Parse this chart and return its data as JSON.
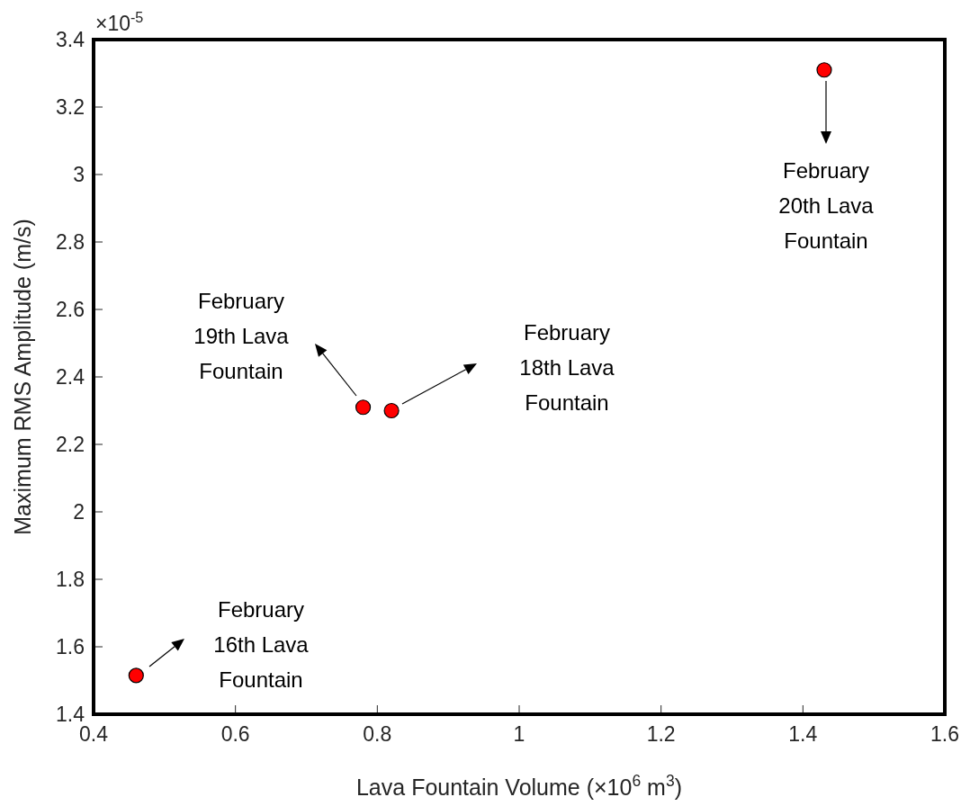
{
  "chart_data": {
    "type": "scatter",
    "xlabel": "Lava Fountain Volume (×10$^{6}$ m$^{3}$)",
    "ylabel": "Maximum RMS Amplitude (m/s)",
    "x": [
      0.46,
      0.78,
      0.82,
      1.43
    ],
    "series": [
      {
        "color": "#ff0000",
        "values": [
          1.515,
          2.31,
          2.3,
          3.31
        ]
      }
    ],
    "marker": "circle",
    "xlim": [
      0.4,
      1.6
    ],
    "xticks": [
      0.4,
      0.6,
      0.8,
      1,
      1.2,
      1.4,
      1.6
    ],
    "ylim": [
      1.4,
      3.4
    ],
    "yticks": [
      1.4,
      1.6,
      1.8,
      2,
      2.2,
      2.4,
      2.6,
      2.8,
      3,
      3.2,
      3.4
    ],
    "grid": false,
    "annotations": [
      "×10$^{-5}$",
      "February 16th Lava Fountain",
      "February 19th Lava Fountain",
      "February 18th Lava Fountain",
      "February 20th Lava Fountain"
    ]
  }
}
